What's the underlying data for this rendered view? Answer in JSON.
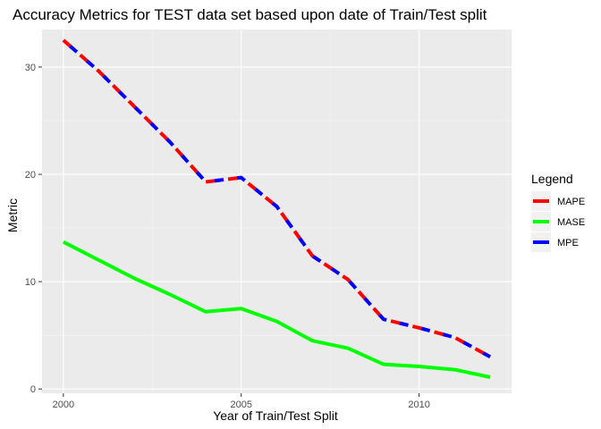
{
  "chart_data": {
    "type": "line",
    "title": "Accuracy Metrics for TEST data set based upon date of Train/Test split",
    "xlabel": "Year of Train/Test Split",
    "ylabel": "Metric",
    "xlim": [
      1999.4,
      2012.6
    ],
    "ylim": [
      -0.4,
      33.5
    ],
    "x_ticks": [
      2000,
      2005,
      2010
    ],
    "y_ticks": [
      0,
      10,
      20,
      30
    ],
    "x": [
      2000,
      2001,
      2002,
      2003,
      2004,
      2005,
      2006,
      2007,
      2008,
      2009,
      2010,
      2011,
      2012
    ],
    "series": [
      {
        "name": "MAPE",
        "color": "#ff0000",
        "style": "dashed",
        "values": [
          32.5,
          29.6,
          26.3,
          23.0,
          19.3,
          19.7,
          17.0,
          12.4,
          10.2,
          6.5,
          5.7,
          4.8,
          3.0
        ]
      },
      {
        "name": "MASE",
        "color": "#00ff00",
        "style": "solid",
        "values": [
          13.7,
          12.0,
          10.3,
          8.8,
          7.2,
          7.5,
          6.3,
          4.5,
          3.8,
          2.3,
          2.1,
          1.8,
          1.1
        ]
      },
      {
        "name": "MPE",
        "color": "#0000ff",
        "style": "dashed-offset",
        "values": [
          32.5,
          29.6,
          26.3,
          23.0,
          19.3,
          19.7,
          17.0,
          12.4,
          10.2,
          6.5,
          5.7,
          4.8,
          3.0
        ]
      }
    ],
    "legend": {
      "title": "Legend",
      "position": "right"
    },
    "grid": true,
    "background": "#ebebeb"
  }
}
